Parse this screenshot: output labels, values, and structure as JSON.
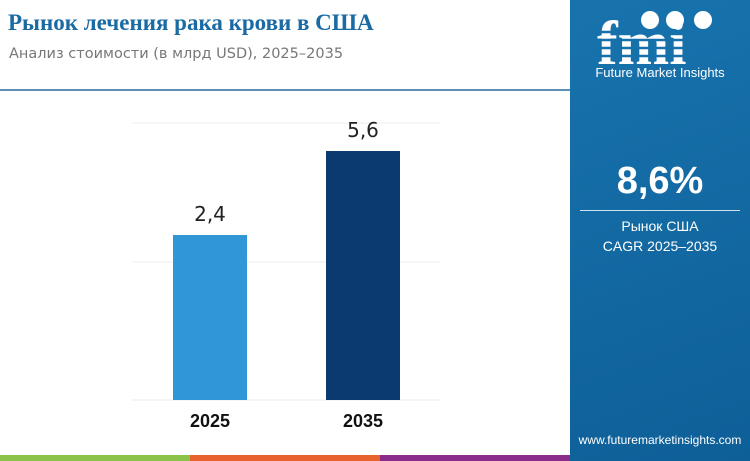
{
  "header": {
    "title": "Рынок лечения рака крови в США",
    "subtitle": "Анализ стоимости (в млрд USD), 2025–2035"
  },
  "chart_data": {
    "type": "bar",
    "categories": [
      "2025",
      "2035"
    ],
    "values": [
      2.4,
      5.6
    ],
    "data_labels": [
      "2,4",
      "5,6"
    ],
    "colors": [
      "#3196d6",
      "#0a3a70"
    ],
    "grid": true
  },
  "sidebar": {
    "brand": "Future Market Insights",
    "cagr_value": "8,6%",
    "cagr_label_1": "Рынок США",
    "cagr_label_2": "CAGR 2025–2035",
    "url": "www.futuremarketinsights.com"
  },
  "colors": {
    "stripes": [
      "#8bc34a",
      "#e8622c",
      "#8a2c8a"
    ],
    "sidebar": "#1670ab"
  }
}
